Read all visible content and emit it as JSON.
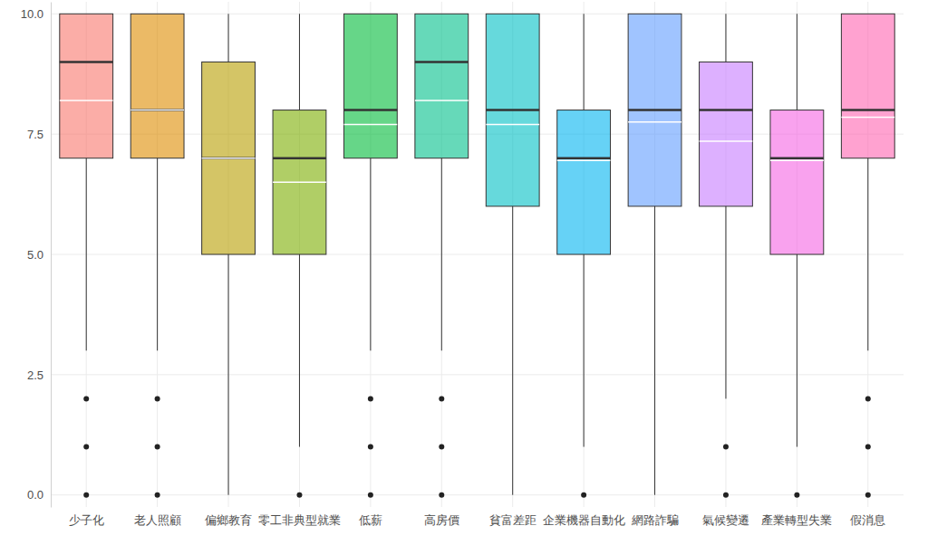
{
  "chart_data": {
    "type": "box",
    "categories": [
      "少子化",
      "老人照顧",
      "偏鄉教育",
      "零工非典型就業",
      "低薪",
      "高房價",
      "貧富差距",
      "企業機器自動化",
      "網路詐騙",
      "氣候變遷",
      "產業轉型失業",
      "假消息"
    ],
    "whisker_low": [
      3,
      3,
      0,
      1,
      3,
      3,
      0,
      1,
      0,
      2,
      1,
      3
    ],
    "q1": [
      7,
      7,
      5,
      5,
      7,
      7,
      6,
      5,
      6,
      6,
      5,
      7
    ],
    "median": [
      9,
      8,
      7,
      7,
      8,
      9,
      8,
      7,
      8,
      8,
      7,
      8
    ],
    "q3": [
      10,
      10,
      9,
      8,
      10,
      10,
      10,
      8,
      10,
      9,
      8,
      10
    ],
    "whisker_high": [
      10,
      10,
      10,
      10,
      10,
      10,
      10,
      10,
      10,
      10,
      10,
      10
    ],
    "mean": [
      8.2,
      8.0,
      7.0,
      6.5,
      7.7,
      8.2,
      7.7,
      6.95,
      7.75,
      7.35,
      6.95,
      7.85
    ],
    "outliers": [
      [
        0,
        1,
        2
      ],
      [
        0,
        1,
        2
      ],
      [],
      [
        0
      ],
      [
        0,
        1,
        2
      ],
      [
        0,
        1,
        2
      ],
      [],
      [
        0
      ],
      [],
      [
        0,
        1
      ],
      [
        0
      ],
      [
        0,
        1,
        2
      ]
    ],
    "colors": [
      "#F8766D",
      "#DE8C00",
      "#B79F00",
      "#7CAE00",
      "#00BA38",
      "#00C08B",
      "#00BFC4",
      "#00B4F0",
      "#619CFF",
      "#C77CFF",
      "#F564E3",
      "#FF64B0"
    ],
    "ylim": [
      -0.25,
      10.25
    ],
    "yticks": [
      {
        "value": 0,
        "label": "0.0"
      },
      {
        "value": 2.5,
        "label": "2.5"
      },
      {
        "value": 5,
        "label": "5.0"
      },
      {
        "value": 7.5,
        "label": "7.5"
      },
      {
        "value": 10,
        "label": "10.0"
      }
    ],
    "grid": true
  }
}
